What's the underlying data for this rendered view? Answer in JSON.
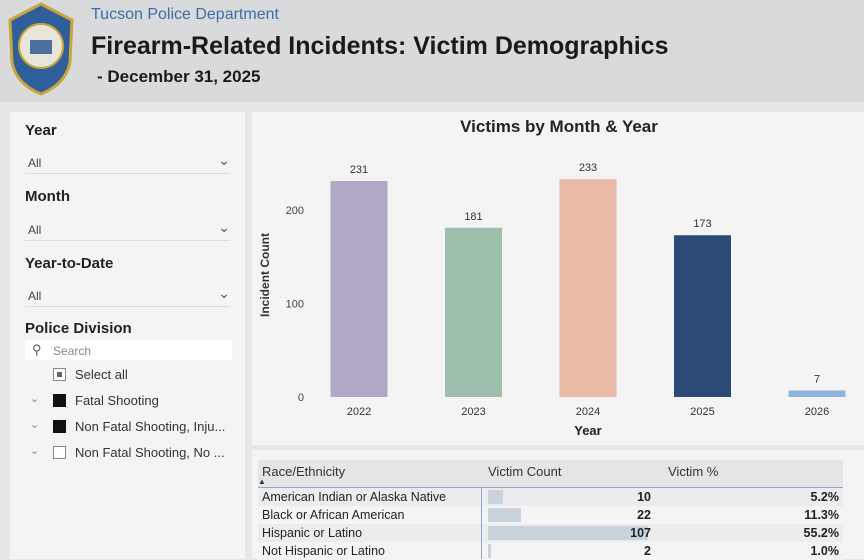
{
  "header": {
    "org": "Tucson Police Department",
    "title": "Firearm-Related Incidents: Victim Demographics",
    "date": "- December 31, 2025"
  },
  "filters": {
    "year": {
      "label": "Year",
      "value": "All"
    },
    "month": {
      "label": "Month",
      "value": "All"
    },
    "ytd": {
      "label": "Year-to-Date",
      "value": "All"
    },
    "division": {
      "label": "Police Division",
      "search_placeholder": "Search",
      "items": [
        {
          "label": "Select all",
          "state": "partial"
        },
        {
          "label": "Fatal Shooting",
          "state": "checked"
        },
        {
          "label": "Non Fatal Shooting, Inju...",
          "state": "checked"
        },
        {
          "label": "Non Fatal Shooting, No ...",
          "state": "unchecked"
        }
      ]
    }
  },
  "chart_data": {
    "type": "bar",
    "title": "Victims by Month & Year",
    "xlabel": "Year",
    "ylabel": "Incident Count",
    "categories": [
      "2022",
      "2023",
      "2024",
      "2025",
      "2026"
    ],
    "values": [
      231,
      181,
      233,
      173,
      7
    ],
    "colors": [
      "#b1a9c6",
      "#9fbfad",
      "#e8bba6",
      "#2b4a75",
      "#8fb6da"
    ],
    "yticks": [
      0,
      100,
      200
    ],
    "ylim": [
      0,
      250
    ]
  },
  "table": {
    "headers": [
      "Race/Ethnicity",
      "Victim Count",
      "Victim %"
    ],
    "rows": [
      {
        "name": "American Indian or Alaska Native",
        "count": "10",
        "pct": "5.2%",
        "frac": 0.093
      },
      {
        "name": "Black or African American",
        "count": "22",
        "pct": "11.3%",
        "frac": 0.206
      },
      {
        "name": "Hispanic or Latino",
        "count": "107",
        "pct": "55.2%",
        "frac": 1.0
      },
      {
        "name": "Not Hispanic or Latino",
        "count": "2",
        "pct": "1.0%",
        "frac": 0.019
      }
    ]
  }
}
